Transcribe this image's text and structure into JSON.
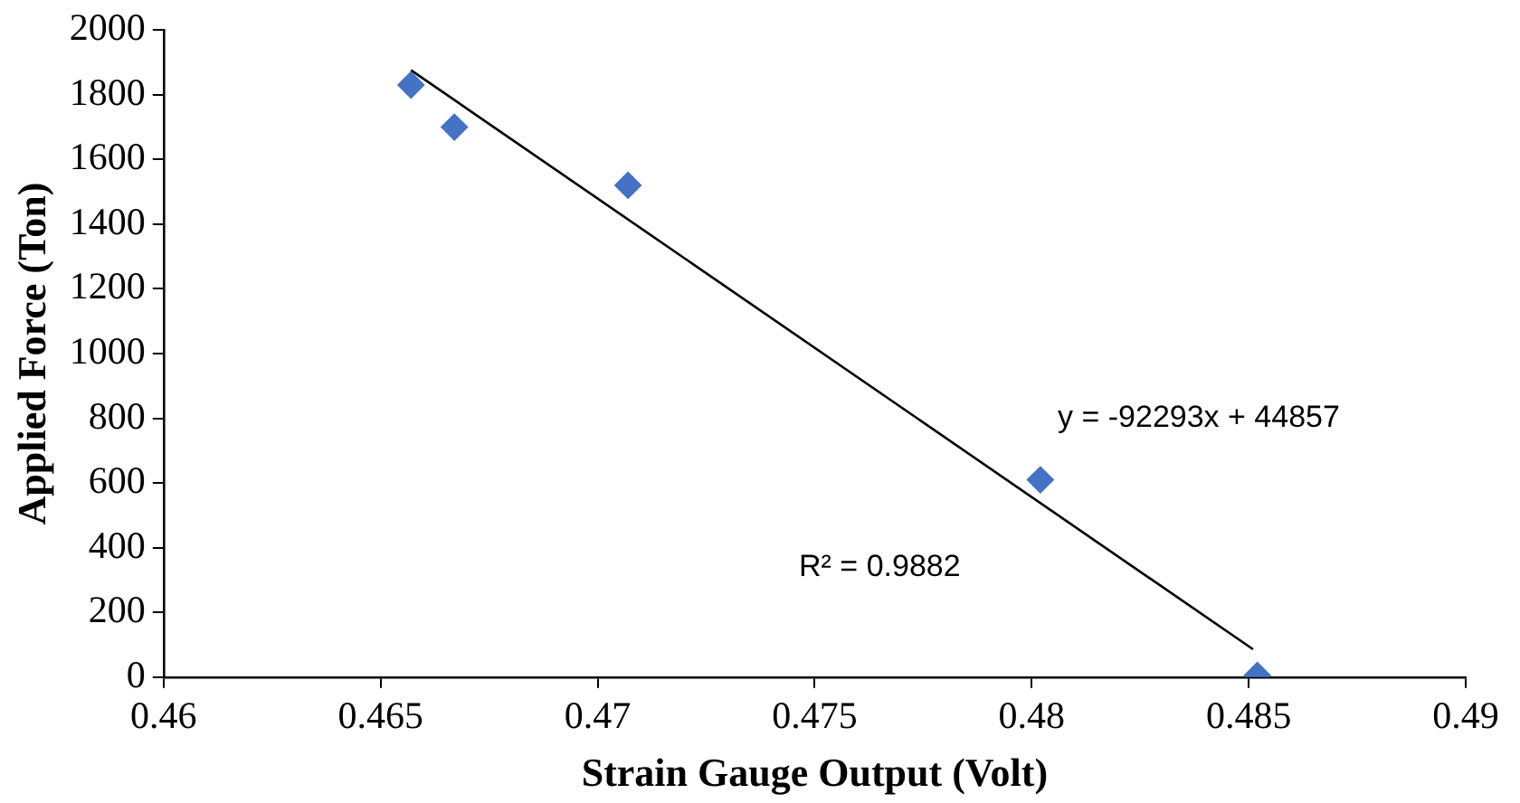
{
  "chart_data": {
    "type": "scatter",
    "xlabel": "Strain Gauge Output (Volt)",
    "ylabel": "Applied Force (Ton)",
    "series": [
      {
        "type": "scatter",
        "color": "#4472c4",
        "marker": "diamond",
        "x": [
          0.4657,
          0.4667,
          0.4707,
          0.4802,
          0.4852
        ],
        "values": [
          1830,
          1700,
          1520,
          610,
          5
        ]
      },
      {
        "type": "line",
        "color": "#000000",
        "marker": "none",
        "line_style": "solid",
        "x": [
          0.4657,
          0.4851
        ],
        "values": [
          1876,
          86
        ]
      }
    ],
    "xlim": [
      0.46,
      0.49
    ],
    "xticks": [
      0.46,
      0.465,
      0.47,
      0.475,
      0.48,
      0.485,
      0.49
    ],
    "ylim": [
      0,
      2000
    ],
    "yticks": [
      0,
      200,
      400,
      600,
      800,
      1000,
      1200,
      1400,
      1600,
      1800,
      2000
    ],
    "grid": false,
    "legend": false,
    "annotations": [
      "y = -92293x + 44857",
      "R² = 0.9882"
    ]
  }
}
